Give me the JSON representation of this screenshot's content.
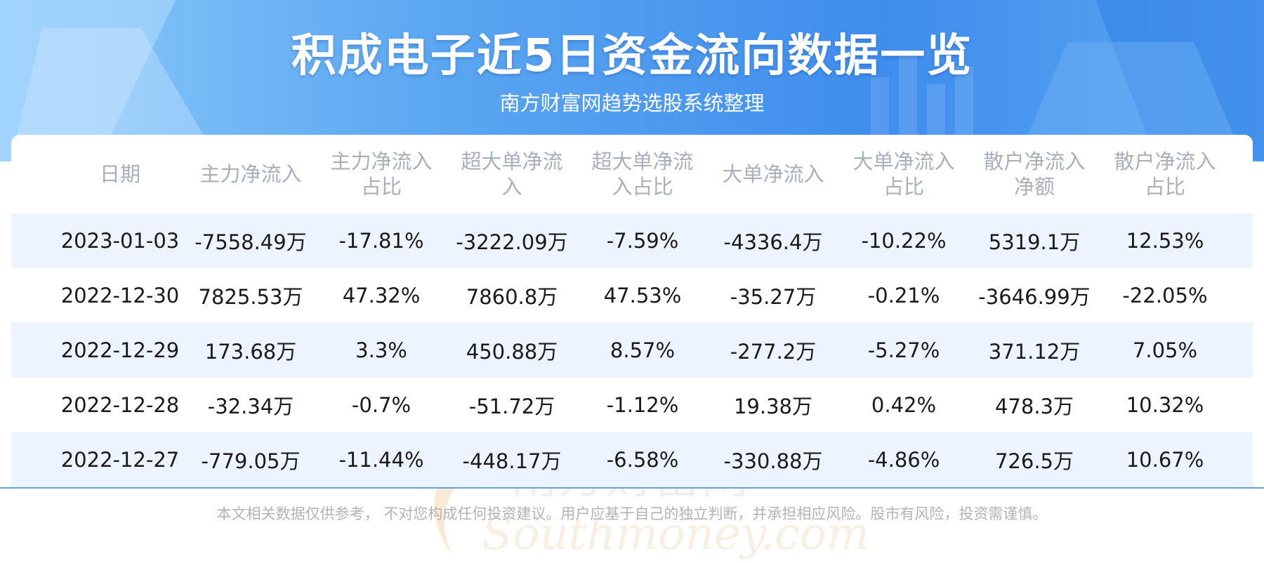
{
  "header": {
    "title": "积成电子近5日资金流向数据一览",
    "subtitle": "南方财富网趋势选股系统整理"
  },
  "table": {
    "columns": [
      {
        "line1": "日期",
        "line2": ""
      },
      {
        "line1": "主力净流入",
        "line2": ""
      },
      {
        "line1": "主力净流入",
        "line2": "占比"
      },
      {
        "line1": "超大单净流",
        "line2": "入"
      },
      {
        "line1": "超大单净流",
        "line2": "入占比"
      },
      {
        "line1": "大单净流入",
        "line2": ""
      },
      {
        "line1": "大单净流入",
        "line2": "占比"
      },
      {
        "line1": "散户净流入",
        "line2": "净额"
      },
      {
        "line1": "散户净流入",
        "line2": "占比"
      }
    ],
    "rows": [
      [
        "2023-01-03",
        "-7558.49万",
        "-17.81%",
        "-3222.09万",
        "-7.59%",
        "-4336.4万",
        "-10.22%",
        "5319.1万",
        "12.53%"
      ],
      [
        "2022-12-30",
        "7825.53万",
        "47.32%",
        "7860.8万",
        "47.53%",
        "-35.27万",
        "-0.21%",
        "-3646.99万",
        "-22.05%"
      ],
      [
        "2022-12-29",
        "173.68万",
        "3.3%",
        "450.88万",
        "8.57%",
        "-277.2万",
        "-5.27%",
        "371.12万",
        "7.05%"
      ],
      [
        "2022-12-28",
        "-32.34万",
        "-0.7%",
        "-51.72万",
        "-1.12%",
        "19.38万",
        "0.42%",
        "478.3万",
        "10.32%"
      ],
      [
        "2022-12-27",
        "-779.05万",
        "-11.44%",
        "-448.17万",
        "-6.58%",
        "-330.88万",
        "-4.86%",
        "726.5万",
        "10.67%"
      ]
    ]
  },
  "watermark": {
    "cn": "南方财富网",
    "en": "Southmoney.com"
  },
  "footer": {
    "disclaimer": "本文相关数据仅供参考， 不对您构成任何投资建议。用户应基于自己的独立判断，并承担相应风险。股市有风险，投资需谨慎。"
  },
  "colors": {
    "banner_blue": "#4a96ef",
    "header_text": "#a9b0b9",
    "row_stripe": "#eef4ff",
    "body_text": "#1a1a1a",
    "watermark": "#f3d9b8"
  }
}
